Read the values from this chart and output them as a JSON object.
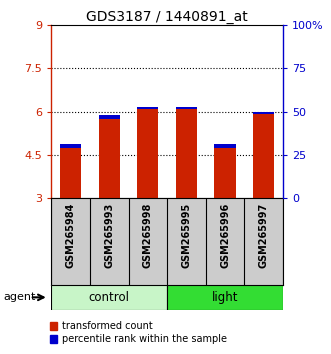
{
  "title": "GDS3187 / 1440891_at",
  "samples": [
    "GSM265984",
    "GSM265993",
    "GSM265998",
    "GSM265995",
    "GSM265996",
    "GSM265997"
  ],
  "red_values": [
    4.75,
    5.75,
    6.1,
    6.1,
    4.75,
    5.9
  ],
  "blue_values": [
    4.87,
    5.87,
    6.17,
    6.17,
    4.87,
    5.97
  ],
  "y_min": 3,
  "y_max": 9,
  "y_ticks": [
    3,
    4.5,
    6,
    7.5,
    9
  ],
  "y_right_ticks": [
    0,
    25,
    50,
    75,
    100
  ],
  "y_right_labels": [
    "0",
    "25",
    "50",
    "75",
    "100%"
  ],
  "groups": [
    {
      "label": "control",
      "start": 0,
      "end": 3,
      "color": "#c8f5c8"
    },
    {
      "label": "light",
      "start": 3,
      "end": 6,
      "color": "#33dd33"
    }
  ],
  "agent_label": "agent",
  "bar_width": 0.55,
  "red_color": "#cc2200",
  "blue_color": "#0000cc",
  "background_color": "#ffffff",
  "plot_bg_color": "#ffffff",
  "sample_box_color": "#cccccc",
  "left_axis_color": "#cc2200",
  "right_axis_color": "#0000cc",
  "legend_red_label": "transformed count",
  "legend_blue_label": "percentile rank within the sample",
  "grid_dotted_vals": [
    4.5,
    6.0,
    7.5
  ]
}
